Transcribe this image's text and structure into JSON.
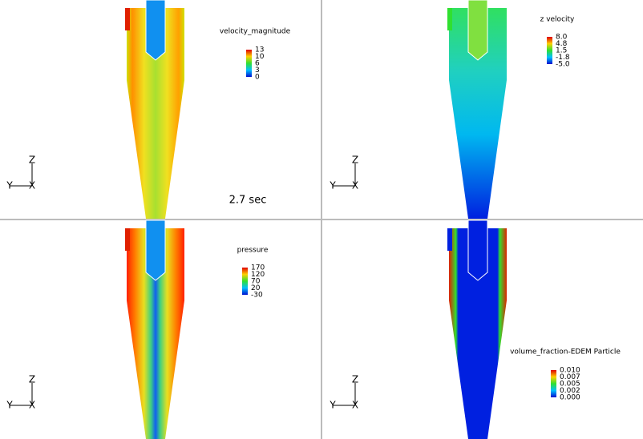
{
  "time_label": "2.7 sec",
  "panels": [
    {
      "title": "velocity_magnitude",
      "colorbar_labels": [
        "13",
        "10",
        "6",
        "3",
        "0"
      ],
      "axes": {
        "z": "Z",
        "y": "Y",
        "x": "X"
      }
    },
    {
      "title": "z velocity",
      "colorbar_labels": [
        "8.0",
        "4.8",
        "1.5",
        "-1.8",
        "-5.0"
      ],
      "axes": {
        "z": "Z",
        "y": "Y",
        "x": "X"
      }
    },
    {
      "title": "pressure",
      "colorbar_labels": [
        "170",
        "120",
        "70",
        "20",
        "-30"
      ],
      "axes": {
        "z": "Z",
        "y": "Y",
        "x": "X"
      }
    },
    {
      "title": "volume_fraction-EDEM Particle",
      "colorbar_labels": [
        "0.010",
        "0.007",
        "0.005",
        "0.002",
        "0.000"
      ],
      "axes": {
        "z": "Z",
        "y": "Y",
        "x": "X"
      }
    }
  ]
}
